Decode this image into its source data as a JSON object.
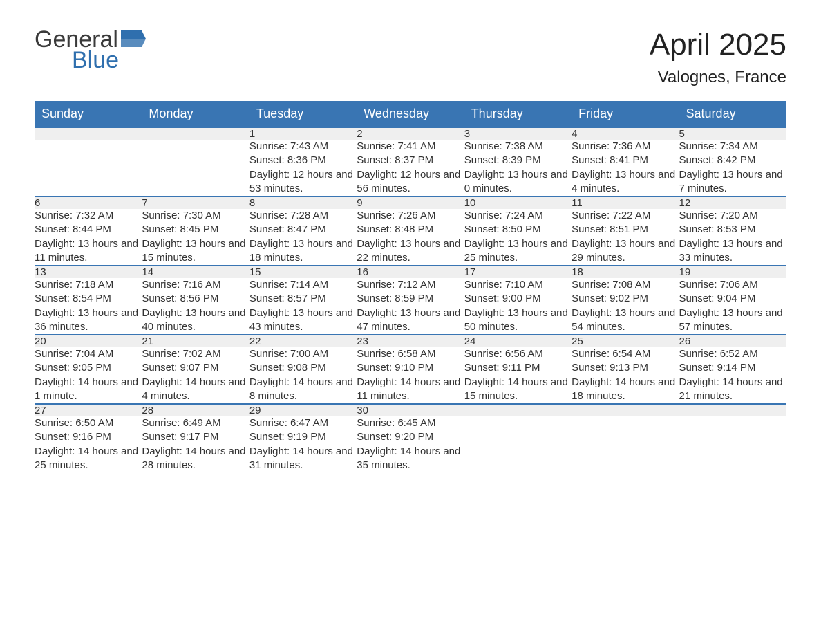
{
  "logo": {
    "text_top": "General",
    "text_bottom": "Blue",
    "flag_color": "#2f6fae"
  },
  "title": "April 2025",
  "location": "Valognes, France",
  "colors": {
    "header_bg": "#3975b3",
    "header_fg": "#ffffff",
    "daynum_bg": "#efefef",
    "row_divider": "#3975b3",
    "text": "#333333",
    "logo_gray": "#3a3a3a",
    "logo_blue": "#2f6fae"
  },
  "weekdays": [
    "Sunday",
    "Monday",
    "Tuesday",
    "Wednesday",
    "Thursday",
    "Friday",
    "Saturday"
  ],
  "weeks": [
    [
      null,
      null,
      {
        "day": "1",
        "sunrise": "7:43 AM",
        "sunset": "8:36 PM",
        "daylight": "12 hours and 53 minutes."
      },
      {
        "day": "2",
        "sunrise": "7:41 AM",
        "sunset": "8:37 PM",
        "daylight": "12 hours and 56 minutes."
      },
      {
        "day": "3",
        "sunrise": "7:38 AM",
        "sunset": "8:39 PM",
        "daylight": "13 hours and 0 minutes."
      },
      {
        "day": "4",
        "sunrise": "7:36 AM",
        "sunset": "8:41 PM",
        "daylight": "13 hours and 4 minutes."
      },
      {
        "day": "5",
        "sunrise": "7:34 AM",
        "sunset": "8:42 PM",
        "daylight": "13 hours and 7 minutes."
      }
    ],
    [
      {
        "day": "6",
        "sunrise": "7:32 AM",
        "sunset": "8:44 PM",
        "daylight": "13 hours and 11 minutes."
      },
      {
        "day": "7",
        "sunrise": "7:30 AM",
        "sunset": "8:45 PM",
        "daylight": "13 hours and 15 minutes."
      },
      {
        "day": "8",
        "sunrise": "7:28 AM",
        "sunset": "8:47 PM",
        "daylight": "13 hours and 18 minutes."
      },
      {
        "day": "9",
        "sunrise": "7:26 AM",
        "sunset": "8:48 PM",
        "daylight": "13 hours and 22 minutes."
      },
      {
        "day": "10",
        "sunrise": "7:24 AM",
        "sunset": "8:50 PM",
        "daylight": "13 hours and 25 minutes."
      },
      {
        "day": "11",
        "sunrise": "7:22 AM",
        "sunset": "8:51 PM",
        "daylight": "13 hours and 29 minutes."
      },
      {
        "day": "12",
        "sunrise": "7:20 AM",
        "sunset": "8:53 PM",
        "daylight": "13 hours and 33 minutes."
      }
    ],
    [
      {
        "day": "13",
        "sunrise": "7:18 AM",
        "sunset": "8:54 PM",
        "daylight": "13 hours and 36 minutes."
      },
      {
        "day": "14",
        "sunrise": "7:16 AM",
        "sunset": "8:56 PM",
        "daylight": "13 hours and 40 minutes."
      },
      {
        "day": "15",
        "sunrise": "7:14 AM",
        "sunset": "8:57 PM",
        "daylight": "13 hours and 43 minutes."
      },
      {
        "day": "16",
        "sunrise": "7:12 AM",
        "sunset": "8:59 PM",
        "daylight": "13 hours and 47 minutes."
      },
      {
        "day": "17",
        "sunrise": "7:10 AM",
        "sunset": "9:00 PM",
        "daylight": "13 hours and 50 minutes."
      },
      {
        "day": "18",
        "sunrise": "7:08 AM",
        "sunset": "9:02 PM",
        "daylight": "13 hours and 54 minutes."
      },
      {
        "day": "19",
        "sunrise": "7:06 AM",
        "sunset": "9:04 PM",
        "daylight": "13 hours and 57 minutes."
      }
    ],
    [
      {
        "day": "20",
        "sunrise": "7:04 AM",
        "sunset": "9:05 PM",
        "daylight": "14 hours and 1 minute."
      },
      {
        "day": "21",
        "sunrise": "7:02 AM",
        "sunset": "9:07 PM",
        "daylight": "14 hours and 4 minutes."
      },
      {
        "day": "22",
        "sunrise": "7:00 AM",
        "sunset": "9:08 PM",
        "daylight": "14 hours and 8 minutes."
      },
      {
        "day": "23",
        "sunrise": "6:58 AM",
        "sunset": "9:10 PM",
        "daylight": "14 hours and 11 minutes."
      },
      {
        "day": "24",
        "sunrise": "6:56 AM",
        "sunset": "9:11 PM",
        "daylight": "14 hours and 15 minutes."
      },
      {
        "day": "25",
        "sunrise": "6:54 AM",
        "sunset": "9:13 PM",
        "daylight": "14 hours and 18 minutes."
      },
      {
        "day": "26",
        "sunrise": "6:52 AM",
        "sunset": "9:14 PM",
        "daylight": "14 hours and 21 minutes."
      }
    ],
    [
      {
        "day": "27",
        "sunrise": "6:50 AM",
        "sunset": "9:16 PM",
        "daylight": "14 hours and 25 minutes."
      },
      {
        "day": "28",
        "sunrise": "6:49 AM",
        "sunset": "9:17 PM",
        "daylight": "14 hours and 28 minutes."
      },
      {
        "day": "29",
        "sunrise": "6:47 AM",
        "sunset": "9:19 PM",
        "daylight": "14 hours and 31 minutes."
      },
      {
        "day": "30",
        "sunrise": "6:45 AM",
        "sunset": "9:20 PM",
        "daylight": "14 hours and 35 minutes."
      },
      null,
      null,
      null
    ]
  ],
  "labels": {
    "sunrise": "Sunrise: ",
    "sunset": "Sunset: ",
    "daylight": "Daylight: "
  }
}
